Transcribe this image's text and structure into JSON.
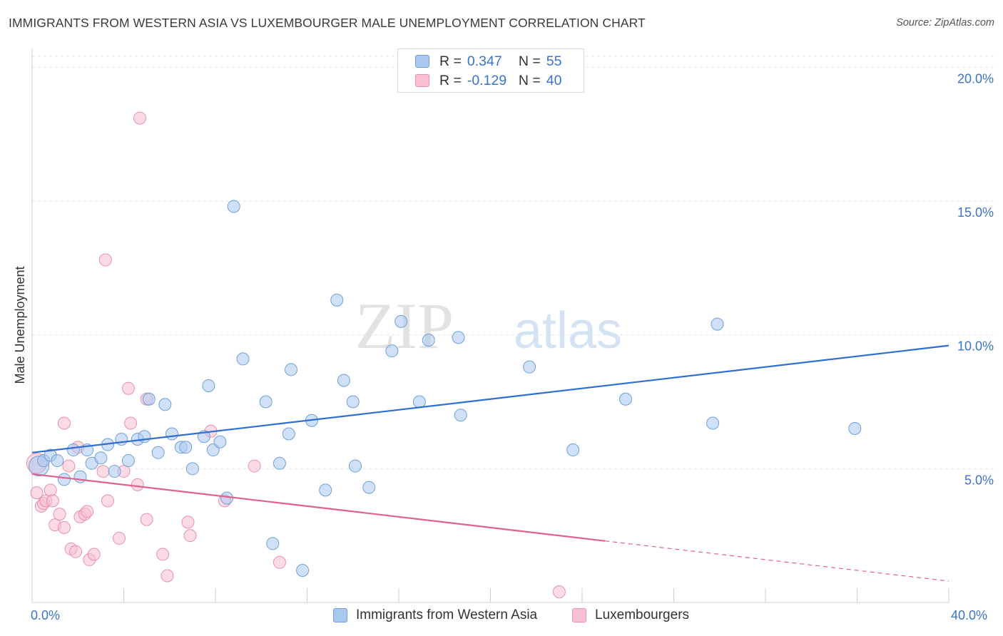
{
  "header": {
    "title": "IMMIGRANTS FROM WESTERN ASIA VS LUXEMBOURGER MALE UNEMPLOYMENT CORRELATION CHART",
    "source": "Source: ZipAtlas.com"
  },
  "watermark": {
    "zip": "ZIP",
    "atlas": "atlas"
  },
  "legend": {
    "r_label": "R =",
    "n_label": "N =",
    "series1": {
      "r": "0.347",
      "n": "55"
    },
    "series2": {
      "r": "-0.129",
      "n": "40"
    }
  },
  "bottom_legend": {
    "series1": "Immigrants from Western Asia",
    "series2": "Luxembourgers"
  },
  "x_axis": {
    "min_label": "0.0%",
    "max_label": "40.0%"
  },
  "colors": {
    "blue_fill": "#a9c8f0",
    "blue_stroke": "#6e9fd8",
    "blue_line": "#2f6fcf",
    "pink_fill": "#f7bfd0",
    "pink_stroke": "#eb8fab",
    "pink_line": "#e0608e",
    "axis_text": "#3a73c9",
    "grid": "#e3e3e3"
  },
  "chart_data": {
    "type": "scatter",
    "title": "IMMIGRANTS FROM WESTERN ASIA VS LUXEMBOURGER MALE UNEMPLOYMENT CORRELATION CHART",
    "xlabel": "",
    "ylabel": "Male Unemployment",
    "xlim": [
      0,
      40
    ],
    "ylim": [
      0,
      20.7
    ],
    "y_ticks": [
      {
        "value": 5,
        "label": "5.0%"
      },
      {
        "value": 10,
        "label": "10.0%"
      },
      {
        "value": 15,
        "label": "15.0%"
      },
      {
        "value": 20,
        "label": "20.0%"
      }
    ],
    "x_tick_values": [
      0,
      4,
      8,
      12,
      16,
      20,
      24,
      28,
      32,
      36,
      40
    ],
    "series": [
      {
        "name": "Immigrants from Western Asia",
        "color": "blue",
        "r": 0.347,
        "n": 55,
        "trend": {
          "x": [
            0,
            40
          ],
          "y": [
            5.6,
            9.6
          ],
          "solid_to": 40
        },
        "points": [
          {
            "x": 0.3,
            "y": 5.1,
            "big": true
          },
          {
            "x": 0.5,
            "y": 5.3
          },
          {
            "x": 0.8,
            "y": 5.5
          },
          {
            "x": 1.1,
            "y": 5.3
          },
          {
            "x": 1.4,
            "y": 4.6
          },
          {
            "x": 1.8,
            "y": 5.7
          },
          {
            "x": 2.1,
            "y": 4.7
          },
          {
            "x": 2.4,
            "y": 5.7
          },
          {
            "x": 2.6,
            "y": 5.2
          },
          {
            "x": 3.0,
            "y": 5.4
          },
          {
            "x": 3.3,
            "y": 5.9
          },
          {
            "x": 3.6,
            "y": 4.9
          },
          {
            "x": 3.9,
            "y": 6.1
          },
          {
            "x": 4.2,
            "y": 5.3
          },
          {
            "x": 4.6,
            "y": 6.1
          },
          {
            "x": 4.9,
            "y": 6.2
          },
          {
            "x": 5.1,
            "y": 7.6
          },
          {
            "x": 5.5,
            "y": 5.6
          },
          {
            "x": 5.8,
            "y": 7.4
          },
          {
            "x": 6.1,
            "y": 6.3
          },
          {
            "x": 6.5,
            "y": 5.8
          },
          {
            "x": 6.7,
            "y": 5.8
          },
          {
            "x": 7.0,
            "y": 5.0
          },
          {
            "x": 7.5,
            "y": 6.2
          },
          {
            "x": 7.7,
            "y": 8.1
          },
          {
            "x": 7.9,
            "y": 5.7
          },
          {
            "x": 8.2,
            "y": 6.0
          },
          {
            "x": 8.5,
            "y": 3.9
          },
          {
            "x": 8.8,
            "y": 14.8
          },
          {
            "x": 9.2,
            "y": 9.1
          },
          {
            "x": 10.2,
            "y": 7.5
          },
          {
            "x": 10.5,
            "y": 2.2
          },
          {
            "x": 10.8,
            "y": 5.2
          },
          {
            "x": 11.2,
            "y": 6.3
          },
          {
            "x": 11.3,
            "y": 8.7
          },
          {
            "x": 11.8,
            "y": 1.2
          },
          {
            "x": 12.2,
            "y": 6.8
          },
          {
            "x": 12.8,
            "y": 4.2
          },
          {
            "x": 13.3,
            "y": 11.3
          },
          {
            "x": 13.6,
            "y": 8.3
          },
          {
            "x": 14.0,
            "y": 7.5
          },
          {
            "x": 14.1,
            "y": 5.1
          },
          {
            "x": 14.7,
            "y": 4.3
          },
          {
            "x": 15.7,
            "y": 9.4
          },
          {
            "x": 16.1,
            "y": 10.5
          },
          {
            "x": 16.9,
            "y": 7.5
          },
          {
            "x": 17.3,
            "y": 9.8
          },
          {
            "x": 18.6,
            "y": 9.9
          },
          {
            "x": 18.7,
            "y": 7.0
          },
          {
            "x": 21.7,
            "y": 8.8
          },
          {
            "x": 23.6,
            "y": 5.7
          },
          {
            "x": 25.9,
            "y": 7.6
          },
          {
            "x": 29.7,
            "y": 6.7
          },
          {
            "x": 29.9,
            "y": 10.4
          },
          {
            "x": 35.9,
            "y": 6.5
          }
        ]
      },
      {
        "name": "Luxembourgers",
        "color": "pink",
        "r": -0.129,
        "n": 40,
        "trend": {
          "x": [
            0,
            40
          ],
          "y": [
            4.8,
            0.8
          ],
          "solid_to": 25
        },
        "points": [
          {
            "x": 0.2,
            "y": 5.2,
            "big": true
          },
          {
            "x": 0.2,
            "y": 4.1
          },
          {
            "x": 0.4,
            "y": 3.6
          },
          {
            "x": 0.5,
            "y": 3.7
          },
          {
            "x": 0.6,
            "y": 3.8
          },
          {
            "x": 0.8,
            "y": 4.2
          },
          {
            "x": 0.9,
            "y": 3.8
          },
          {
            "x": 1.0,
            "y": 2.9
          },
          {
            "x": 1.2,
            "y": 3.3
          },
          {
            "x": 1.4,
            "y": 2.8
          },
          {
            "x": 1.4,
            "y": 6.7
          },
          {
            "x": 1.6,
            "y": 5.1
          },
          {
            "x": 1.7,
            "y": 2.0
          },
          {
            "x": 1.9,
            "y": 1.9
          },
          {
            "x": 2.0,
            "y": 5.8
          },
          {
            "x": 2.1,
            "y": 3.2
          },
          {
            "x": 2.3,
            "y": 3.3
          },
          {
            "x": 2.4,
            "y": 3.4
          },
          {
            "x": 2.5,
            "y": 1.6
          },
          {
            "x": 2.7,
            "y": 1.8
          },
          {
            "x": 3.1,
            "y": 4.9
          },
          {
            "x": 3.2,
            "y": 12.8
          },
          {
            "x": 3.3,
            "y": 3.8
          },
          {
            "x": 3.8,
            "y": 2.4
          },
          {
            "x": 4.0,
            "y": 4.9
          },
          {
            "x": 4.2,
            "y": 8.0
          },
          {
            "x": 4.3,
            "y": 6.7
          },
          {
            "x": 4.6,
            "y": 4.4
          },
          {
            "x": 4.7,
            "y": 18.1
          },
          {
            "x": 5.0,
            "y": 7.6
          },
          {
            "x": 5.0,
            "y": 3.1
          },
          {
            "x": 5.7,
            "y": 1.8
          },
          {
            "x": 5.9,
            "y": 1.0
          },
          {
            "x": 6.8,
            "y": 3.0
          },
          {
            "x": 6.9,
            "y": 2.5
          },
          {
            "x": 7.8,
            "y": 6.4
          },
          {
            "x": 8.4,
            "y": 3.8
          },
          {
            "x": 9.7,
            "y": 5.1
          },
          {
            "x": 10.8,
            "y": 1.5
          },
          {
            "x": 23.0,
            "y": 0.4
          }
        ]
      }
    ]
  }
}
